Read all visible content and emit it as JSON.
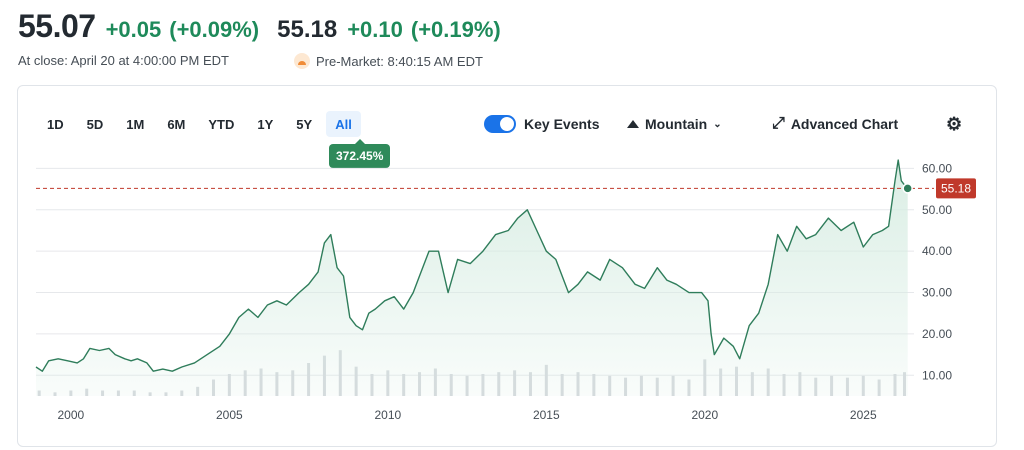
{
  "quote": {
    "close_price": "55.07",
    "close_change": "+0.05",
    "close_change_pct": "(+0.09%)",
    "premarket_price": "55.18",
    "premarket_change": "+0.10",
    "premarket_change_pct": "(+0.19%)",
    "close_label": "At close: April 20 at 4:00:00 PM EDT",
    "premarket_label": "Pre-Market: 8:40:15 AM EDT"
  },
  "toolbar": {
    "ranges": [
      "1D",
      "5D",
      "1M",
      "6M",
      "YTD",
      "1Y",
      "5Y",
      "All"
    ],
    "active_range": "All",
    "range_return": "372.45%",
    "key_events_label": "Key Events",
    "key_events_on": true,
    "chart_style_label": "Mountain",
    "advanced_chart_label": "Advanced Chart"
  },
  "colors": {
    "line": "#2f7d5b",
    "fill": "#d8ede3",
    "positive": "#1e8a5a",
    "current_price_marker": "#c0392b",
    "accent": "#1a73e8"
  },
  "chart_data": {
    "type": "area",
    "x_type": "year",
    "x_ticks": [
      2000,
      2005,
      2010,
      2015,
      2020,
      2025
    ],
    "y_ticks": [
      10,
      20,
      30,
      40,
      50,
      60
    ],
    "y_tick_labels": [
      "10.00",
      "20.00",
      "30.00",
      "40.00",
      "50.00",
      "60.00"
    ],
    "ylim": [
      5,
      63
    ],
    "xlim": [
      1998.9,
      2026.6
    ],
    "current_price": 55.18,
    "current_price_label": "55.18",
    "grid": true,
    "series": [
      {
        "x": [
          1998.9,
          1999.1,
          1999.3,
          1999.6,
          1999.9,
          2000.2,
          2000.4,
          2000.6,
          2000.9,
          2001.2,
          2001.4,
          2001.7,
          2001.9,
          2002.1,
          2002.4,
          2002.6,
          2002.9,
          2003.2,
          2003.5,
          2003.9,
          2004.3,
          2004.7,
          2005.0,
          2005.3,
          2005.6,
          2005.9,
          2006.2,
          2006.5,
          2006.8,
          2007.2,
          2007.5,
          2007.8,
          2008.0,
          2008.2,
          2008.4,
          2008.6,
          2008.8,
          2009.0,
          2009.2,
          2009.4,
          2009.6,
          2009.9,
          2010.2,
          2010.5,
          2010.8,
          2011.0,
          2011.3,
          2011.6,
          2011.9,
          2012.2,
          2012.6,
          2013.0,
          2013.4,
          2013.8,
          2014.1,
          2014.4,
          2014.7,
          2015.0,
          2015.3,
          2015.7,
          2016.0,
          2016.3,
          2016.7,
          2017.0,
          2017.4,
          2017.8,
          2018.1,
          2018.5,
          2018.8,
          2019.1,
          2019.5,
          2019.9,
          2020.1,
          2020.2,
          2020.3,
          2020.6,
          2020.9,
          2021.1,
          2021.4,
          2021.7,
          2022.0,
          2022.3,
          2022.6,
          2022.9,
          2023.2,
          2023.5,
          2023.9,
          2024.3,
          2024.7,
          2025.0,
          2025.3,
          2025.6,
          2025.8,
          2026.0,
          2026.1,
          2026.2,
          2026.3,
          2026.4
        ],
        "y": [
          12.0,
          11.0,
          13.5,
          14.0,
          13.5,
          13.0,
          14.0,
          16.5,
          16.0,
          16.5,
          15.0,
          14.0,
          13.5,
          14.0,
          13.0,
          11.0,
          11.5,
          11.0,
          12.0,
          13.0,
          15.0,
          17.0,
          20.0,
          24.0,
          26.0,
          24.0,
          27.0,
          28.0,
          27.0,
          30.0,
          32.0,
          35.0,
          42.0,
          44.0,
          36.0,
          34.0,
          24.0,
          22.0,
          21.0,
          25.0,
          26.0,
          28.0,
          29.0,
          26.0,
          30.0,
          34.0,
          40.0,
          40.0,
          30.0,
          38.0,
          37.0,
          40.0,
          44.0,
          45.0,
          48.0,
          50.0,
          45.0,
          40.0,
          38.0,
          30.0,
          32.0,
          35.0,
          33.0,
          38.0,
          36.0,
          32.0,
          31.0,
          36.0,
          33.0,
          32.0,
          30.0,
          30.0,
          28.0,
          20.0,
          15.0,
          19.0,
          17.0,
          14.0,
          22.0,
          25.0,
          32.0,
          44.0,
          40.0,
          46.0,
          43.0,
          44.0,
          48.0,
          45.0,
          47.0,
          41.0,
          44.0,
          45.0,
          46.0,
          57.0,
          62.0,
          57.0,
          56.0,
          55.18
        ]
      }
    ],
    "volume": {
      "x": [
        1999.0,
        1999.5,
        2000.0,
        2000.5,
        2001.0,
        2001.5,
        2002.0,
        2002.5,
        2003.0,
        2003.5,
        2004.0,
        2004.5,
        2005.0,
        2005.5,
        2006.0,
        2006.5,
        2007.0,
        2007.5,
        2008.0,
        2008.5,
        2009.0,
        2009.5,
        2010.0,
        2010.5,
        2011.0,
        2011.5,
        2012.0,
        2012.5,
        2013.0,
        2013.5,
        2014.0,
        2014.5,
        2015.0,
        2015.5,
        2016.0,
        2016.5,
        2017.0,
        2017.5,
        2018.0,
        2018.5,
        2019.0,
        2019.5,
        2020.0,
        2020.5,
        2021.0,
        2021.5,
        2022.0,
        2022.5,
        2023.0,
        2023.5,
        2024.0,
        2024.5,
        2025.0,
        2025.5,
        2026.0,
        2026.3
      ],
      "y": [
        0.3,
        0.2,
        0.3,
        0.4,
        0.3,
        0.3,
        0.3,
        0.2,
        0.2,
        0.3,
        0.5,
        0.9,
        1.2,
        1.4,
        1.5,
        1.3,
        1.4,
        1.8,
        2.2,
        2.5,
        1.6,
        1.2,
        1.4,
        1.2,
        1.3,
        1.5,
        1.2,
        1.1,
        1.2,
        1.3,
        1.4,
        1.3,
        1.7,
        1.2,
        1.3,
        1.2,
        1.1,
        1.0,
        1.1,
        1.0,
        1.1,
        0.9,
        2.0,
        1.5,
        1.6,
        1.3,
        1.5,
        1.2,
        1.3,
        1.0,
        1.1,
        1.0,
        1.1,
        0.9,
        1.2,
        1.3
      ]
    }
  }
}
